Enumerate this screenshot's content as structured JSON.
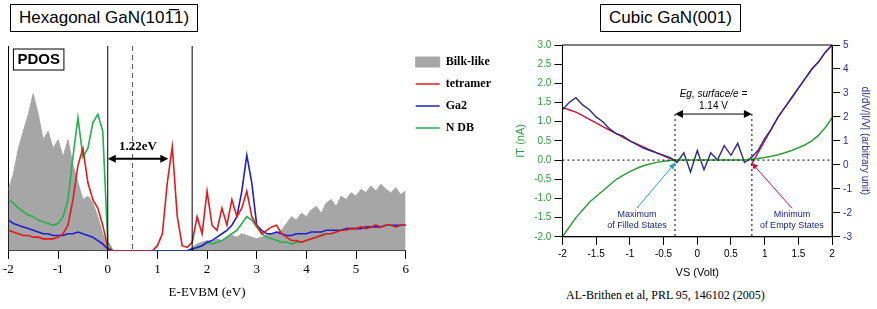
{
  "chart_data": [
    {
      "type": "line",
      "title": "Hexagonal GaN(101̅1)",
      "ylabel": "PDOS",
      "xlabel": "E-EVBM (eV)",
      "x": [
        -2,
        -1.9,
        -1.8,
        -1.7,
        -1.6,
        -1.5,
        -1.4,
        -1.3,
        -1.2,
        -1.1,
        -1,
        -0.9,
        -0.8,
        -0.7,
        -0.6,
        -0.5,
        -0.4,
        -0.3,
        -0.2,
        -0.1,
        0,
        0.1,
        0.2,
        0.3,
        0.4,
        0.5,
        0.6,
        0.7,
        0.8,
        0.9,
        1,
        1.1,
        1.2,
        1.3,
        1.4,
        1.5,
        1.6,
        1.7,
        1.8,
        1.9,
        2,
        2.1,
        2.2,
        2.3,
        2.4,
        2.5,
        2.6,
        2.7,
        2.8,
        2.9,
        3,
        3.1,
        3.2,
        3.3,
        3.4,
        3.5,
        3.6,
        3.7,
        3.8,
        3.9,
        4,
        4.1,
        4.2,
        4.3,
        4.4,
        4.5,
        4.6,
        4.7,
        4.8,
        4.9,
        5,
        5.1,
        5.2,
        5.3,
        5.4,
        5.5,
        5.6,
        5.7,
        5.8,
        5.9,
        6
      ],
      "series": [
        {
          "name": "Bilk-like",
          "type": "area",
          "color": "#a6a6a6",
          "values": [
            3.6,
            4.5,
            6.0,
            7.0,
            8.0,
            9.2,
            8.0,
            6.5,
            7.0,
            6.0,
            6.5,
            5.5,
            6.5,
            5.0,
            4.0,
            3.0,
            3.2,
            2.8,
            2.0,
            1.0,
            0.2,
            0,
            0,
            0,
            0,
            0,
            0,
            0,
            0,
            0,
            0,
            0,
            0,
            0,
            0,
            0,
            0,
            0.2,
            0.4,
            0.5,
            0.6,
            0.5,
            0.7,
            0.6,
            0.8,
            0.9,
            0.8,
            1.0,
            0.9,
            0.8,
            0.7,
            0.8,
            0.9,
            1.0,
            1.1,
            1.2,
            1.6,
            2.0,
            1.8,
            2.2,
            2.0,
            2.4,
            2.6,
            2.2,
            2.8,
            3.0,
            2.6,
            3.2,
            3.0,
            3.4,
            3.2,
            3.6,
            3.4,
            3.8,
            3.5,
            3.9,
            3.6,
            3.4,
            3.7,
            3.3,
            3.5
          ]
        },
        {
          "name": "tetramer",
          "color": "#e31a1c",
          "values": [
            1.2,
            1.1,
            1.0,
            0.9,
            0.9,
            0.8,
            0.8,
            0.7,
            0.7,
            0.7,
            0.8,
            1.0,
            1.5,
            3.0,
            5.0,
            6.0,
            4.0,
            3.0,
            2.5,
            1.5,
            0.2,
            0,
            0,
            0,
            0,
            0,
            0,
            0,
            0,
            0,
            0.3,
            1.0,
            4.0,
            6.1,
            2.0,
            0.3,
            0.2,
            0.5,
            2.0,
            1.0,
            3.5,
            1.5,
            1.2,
            2.5,
            1.5,
            3.0,
            2.0,
            2.5,
            3.5,
            2.0,
            1.5,
            1.0,
            1.2,
            1.4,
            1.5,
            1.0,
            0.8,
            0.6,
            0.6,
            0.5,
            0.6,
            0.7,
            0.8,
            0.9,
            1.0,
            1.0,
            1.1,
            1.2,
            1.2,
            1.3,
            1.3,
            1.4,
            1.3,
            1.4,
            1.5,
            1.4,
            1.5,
            1.5,
            1.4,
            1.5,
            1.5
          ]
        },
        {
          "name": "Ga2",
          "color": "#1f1fcf",
          "values": [
            1.8,
            1.6,
            1.5,
            1.4,
            1.3,
            1.2,
            1.1,
            1.0,
            1.0,
            0.9,
            0.9,
            0.9,
            1.0,
            1.0,
            1.1,
            1.0,
            0.9,
            0.8,
            0.6,
            0.4,
            0.1,
            0,
            0,
            0,
            0,
            0,
            0,
            0,
            0,
            0,
            0,
            0,
            0,
            0,
            0,
            0,
            0,
            0.1,
            0.2,
            0.3,
            0.5,
            0.6,
            0.8,
            1.0,
            1.2,
            1.5,
            2.0,
            3.5,
            5.6,
            4.0,
            1.5,
            1.2,
            1.0,
            1.0,
            1.1,
            1.0,
            0.9,
            0.9,
            1.0,
            1.0,
            1.0,
            1.1,
            1.1,
            1.1,
            1.2,
            1.2,
            1.2,
            1.2,
            1.3,
            1.3,
            1.3,
            1.3,
            1.4,
            1.4,
            1.4,
            1.4,
            1.5,
            1.5,
            1.5,
            1.5,
            1.5
          ]
        },
        {
          "name": "N DB",
          "color": "#22b14c",
          "values": [
            3.0,
            2.8,
            2.5,
            2.3,
            2.1,
            2.0,
            1.8,
            1.7,
            1.6,
            1.5,
            1.6,
            2.0,
            3.0,
            5.5,
            7.8,
            5.5,
            6.0,
            7.5,
            8.0,
            7.0,
            0.5,
            0,
            0,
            0,
            0,
            0,
            0,
            0,
            0,
            0,
            0,
            0,
            0,
            0,
            0,
            0,
            0,
            0.1,
            0.2,
            0.3,
            0.5,
            0.4,
            0.5,
            0.6,
            0.8,
            1.0,
            1.2,
            1.6,
            2.0,
            1.8,
            1.4,
            1.0,
            0.8,
            0.7,
            0.6,
            0.5,
            0.5,
            0.4,
            0.5,
            0.5,
            0.6,
            0.7,
            0.8,
            0.9,
            1.0,
            1.0,
            1.1,
            1.2,
            1.2,
            1.3,
            1.3,
            1.4,
            1.3,
            1.4,
            1.5,
            1.4,
            1.5,
            1.5,
            1.4,
            1.5,
            1.5
          ]
        }
      ],
      "xlim": [
        -2,
        6
      ],
      "xticks": [
        -2,
        -1,
        0,
        1,
        2,
        3,
        4,
        5,
        6
      ],
      "ylim": [
        0,
        12
      ],
      "tick_labels": "x",
      "grid": false,
      "legend": "upper right",
      "vlines": [
        {
          "x": 0,
          "line_style": "solid"
        },
        {
          "x": 0.5,
          "line_style": "dashed"
        },
        {
          "x": 1.7,
          "line_style": "solid"
        }
      ],
      "gap": {
        "from": 0,
        "to": 1.22,
        "label": "1.22eV"
      }
    },
    {
      "type": "line",
      "title": "Cubic GaN(001)",
      "xlabel": "VS (Volt)",
      "ylabel": "IT (nA)",
      "y2label": "dI/dV/|I/V| (arbitrary unit)",
      "x": [
        -2,
        -1.9,
        -1.8,
        -1.7,
        -1.6,
        -1.5,
        -1.4,
        -1.3,
        -1.2,
        -1.1,
        -1,
        -0.9,
        -0.8,
        -0.7,
        -0.6,
        -0.5,
        -0.4,
        -0.3,
        -0.2,
        -0.1,
        0,
        0.1,
        0.2,
        0.3,
        0.4,
        0.5,
        0.6,
        0.7,
        0.8,
        0.9,
        1,
        1.1,
        1.2,
        1.3,
        1.4,
        1.5,
        1.6,
        1.7,
        1.8,
        1.9,
        2
      ],
      "series": [
        {
          "color": "#2e9e3e",
          "values": [
            -2,
            -1.75,
            -1.5,
            -1.3,
            -1.1,
            -0.95,
            -0.8,
            -0.65,
            -0.5,
            -0.4,
            -0.3,
            -0.22,
            -0.15,
            -0.1,
            -0.06,
            -0.03,
            -0.01,
            0,
            0,
            0,
            0,
            0,
            0,
            0,
            0,
            0,
            0,
            0,
            0.02,
            0.04,
            0.07,
            0.1,
            0.14,
            0.19,
            0.25,
            0.32,
            0.4,
            0.5,
            0.65,
            0.85,
            1.1
          ]
        },
        {
          "color": "#2b2b8f",
          "axis": "y2",
          "values": [
            2.3,
            2.6,
            2.8,
            2.5,
            2.3,
            2.0,
            1.8,
            1.5,
            1.3,
            1.2,
            1.0,
            0.85,
            0.7,
            0.6,
            0.5,
            0.4,
            0.3,
            0.1,
            0.5,
            -0.3,
            0.6,
            -0.2,
            0.5,
            0.2,
            0.8,
            0.4,
            0.9,
            0.1,
            0.3,
            0.6,
            1.1,
            1.5,
            2.0,
            2.4,
            2.8,
            3.2,
            3.6,
            4.0,
            4.3,
            4.7,
            5.0
          ]
        },
        {
          "color": "#d0103a",
          "axis": "y2",
          "values": [
            2.4,
            2.3,
            2.2,
            2.05,
            1.9,
            1.75,
            1.6,
            1.45,
            1.3,
            1.15,
            1.0,
            0.88,
            0.75,
            0.62,
            0.5,
            0.38,
            0.26,
            0.15,
            null,
            null,
            null,
            null,
            null,
            null,
            null,
            null,
            null,
            null,
            0.0,
            0.5,
            1.0,
            1.5,
            2.0,
            2.4,
            2.8,
            3.2,
            3.6,
            4.0,
            4.3,
            4.7,
            5.0
          ]
        }
      ],
      "xlim": [
        -2,
        2
      ],
      "xticks": [
        -2,
        -1.5,
        -1,
        -0.5,
        0,
        0.5,
        1,
        1.5,
        2
      ],
      "ylim": [
        -2,
        3
      ],
      "yticks": [
        {
          "value": -2,
          "label": "-2.0"
        },
        -1.5,
        {
          "value": -1,
          "label": "-1.0"
        },
        -0.5,
        {
          "value": 0,
          "label": "0.0"
        },
        0.5,
        {
          "value": 1,
          "label": "1.0"
        },
        1.5,
        {
          "value": 2,
          "label": "2.0"
        },
        2.5,
        {
          "value": 3,
          "label": "3.0"
        }
      ],
      "y2lim": [
        -3,
        5
      ],
      "y2ticks": [
        -3,
        -2,
        -1,
        0,
        1,
        2,
        3,
        4,
        5
      ],
      "grid": false,
      "hlines": [
        {
          "y": 0,
          "line_style": "dotted"
        }
      ],
      "gap": {
        "from": -0.33,
        "to": 0.81,
        "title": "Eg, surface/e =",
        "label": "1.14 V",
        "line_style": "dotted"
      },
      "annotations": [
        {
          "text": [
            "Maximum",
            "of Filled States"
          ],
          "x": -0.33,
          "y": 0,
          "color": "#1f9fd0"
        },
        {
          "text": [
            "Minimum",
            "of Empty States"
          ],
          "x": 0.81,
          "y": 0,
          "color": "#d0103a"
        }
      ],
      "caption": "AL-Brithen et al, PRL 95, 146102 (2005)"
    }
  ]
}
